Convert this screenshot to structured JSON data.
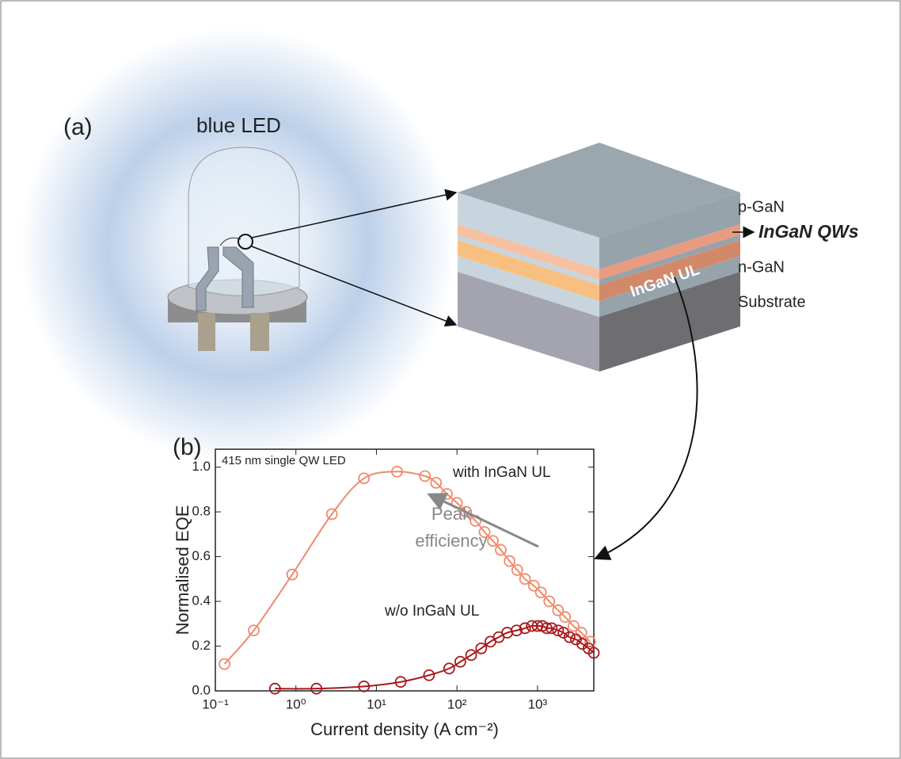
{
  "diagram": {
    "panel_a": "(a)",
    "led_label": "blue LED",
    "layers": {
      "p": "p-GaN",
      "qw": "InGaN QWs",
      "n": "n-GaN",
      "substrate": "Substrate",
      "ul": "InGaN UL"
    }
  },
  "chart_data": {
    "type": "scatter",
    "panel": "(b)",
    "title": "415 nm single QW LED",
    "xlabel": "Current density (A cm⁻²)",
    "ylabel": "Normalised EQE",
    "log_x": true,
    "xlim": [
      0.1,
      5000
    ],
    "ylim": [
      0,
      1.08
    ],
    "xticks": [
      {
        "value": 0.1,
        "label": "10⁻¹"
      },
      {
        "value": 1,
        "label": "10⁰"
      },
      {
        "value": 10,
        "label": "10¹"
      },
      {
        "value": 100,
        "label": "10²"
      },
      {
        "value": 1000,
        "label": "10³"
      }
    ],
    "yticks": [
      {
        "value": 0,
        "label": "0.0"
      },
      {
        "value": 0.2,
        "label": "0.2"
      },
      {
        "value": 0.4,
        "label": "0.4"
      },
      {
        "value": 0.6,
        "label": "0.6"
      },
      {
        "value": 0.8,
        "label": "0.8"
      },
      {
        "value": 1,
        "label": "1.0"
      }
    ],
    "annotation": [
      "Peak",
      "efficiency"
    ],
    "series": [
      {
        "name": "with InGaN UL",
        "color": "#f08a6c",
        "x": [
          0.13,
          0.3,
          0.9,
          2.8,
          7,
          18,
          40,
          55,
          75,
          100,
          130,
          170,
          220,
          280,
          350,
          450,
          560,
          700,
          900,
          1100,
          1400,
          1800,
          2200,
          2800,
          3500,
          4500
        ],
        "values": [
          0.12,
          0.27,
          0.52,
          0.79,
          0.95,
          0.98,
          0.96,
          0.93,
          0.88,
          0.84,
          0.8,
          0.76,
          0.71,
          0.67,
          0.63,
          0.58,
          0.54,
          0.5,
          0.47,
          0.44,
          0.4,
          0.36,
          0.33,
          0.29,
          0.26,
          0.22
        ]
      },
      {
        "name": "w/o InGaN UL",
        "color": "#a8191c",
        "x": [
          0.55,
          1.8,
          7,
          20,
          45,
          80,
          110,
          150,
          200,
          260,
          330,
          420,
          550,
          700,
          850,
          1000,
          1150,
          1300,
          1500,
          1800,
          2100,
          2500,
          3000,
          3600,
          4300,
          5000
        ],
        "values": [
          0.01,
          0.01,
          0.02,
          0.04,
          0.07,
          0.1,
          0.13,
          0.16,
          0.19,
          0.22,
          0.24,
          0.26,
          0.27,
          0.28,
          0.29,
          0.29,
          0.29,
          0.28,
          0.28,
          0.27,
          0.26,
          0.24,
          0.23,
          0.21,
          0.19,
          0.17
        ]
      }
    ]
  }
}
